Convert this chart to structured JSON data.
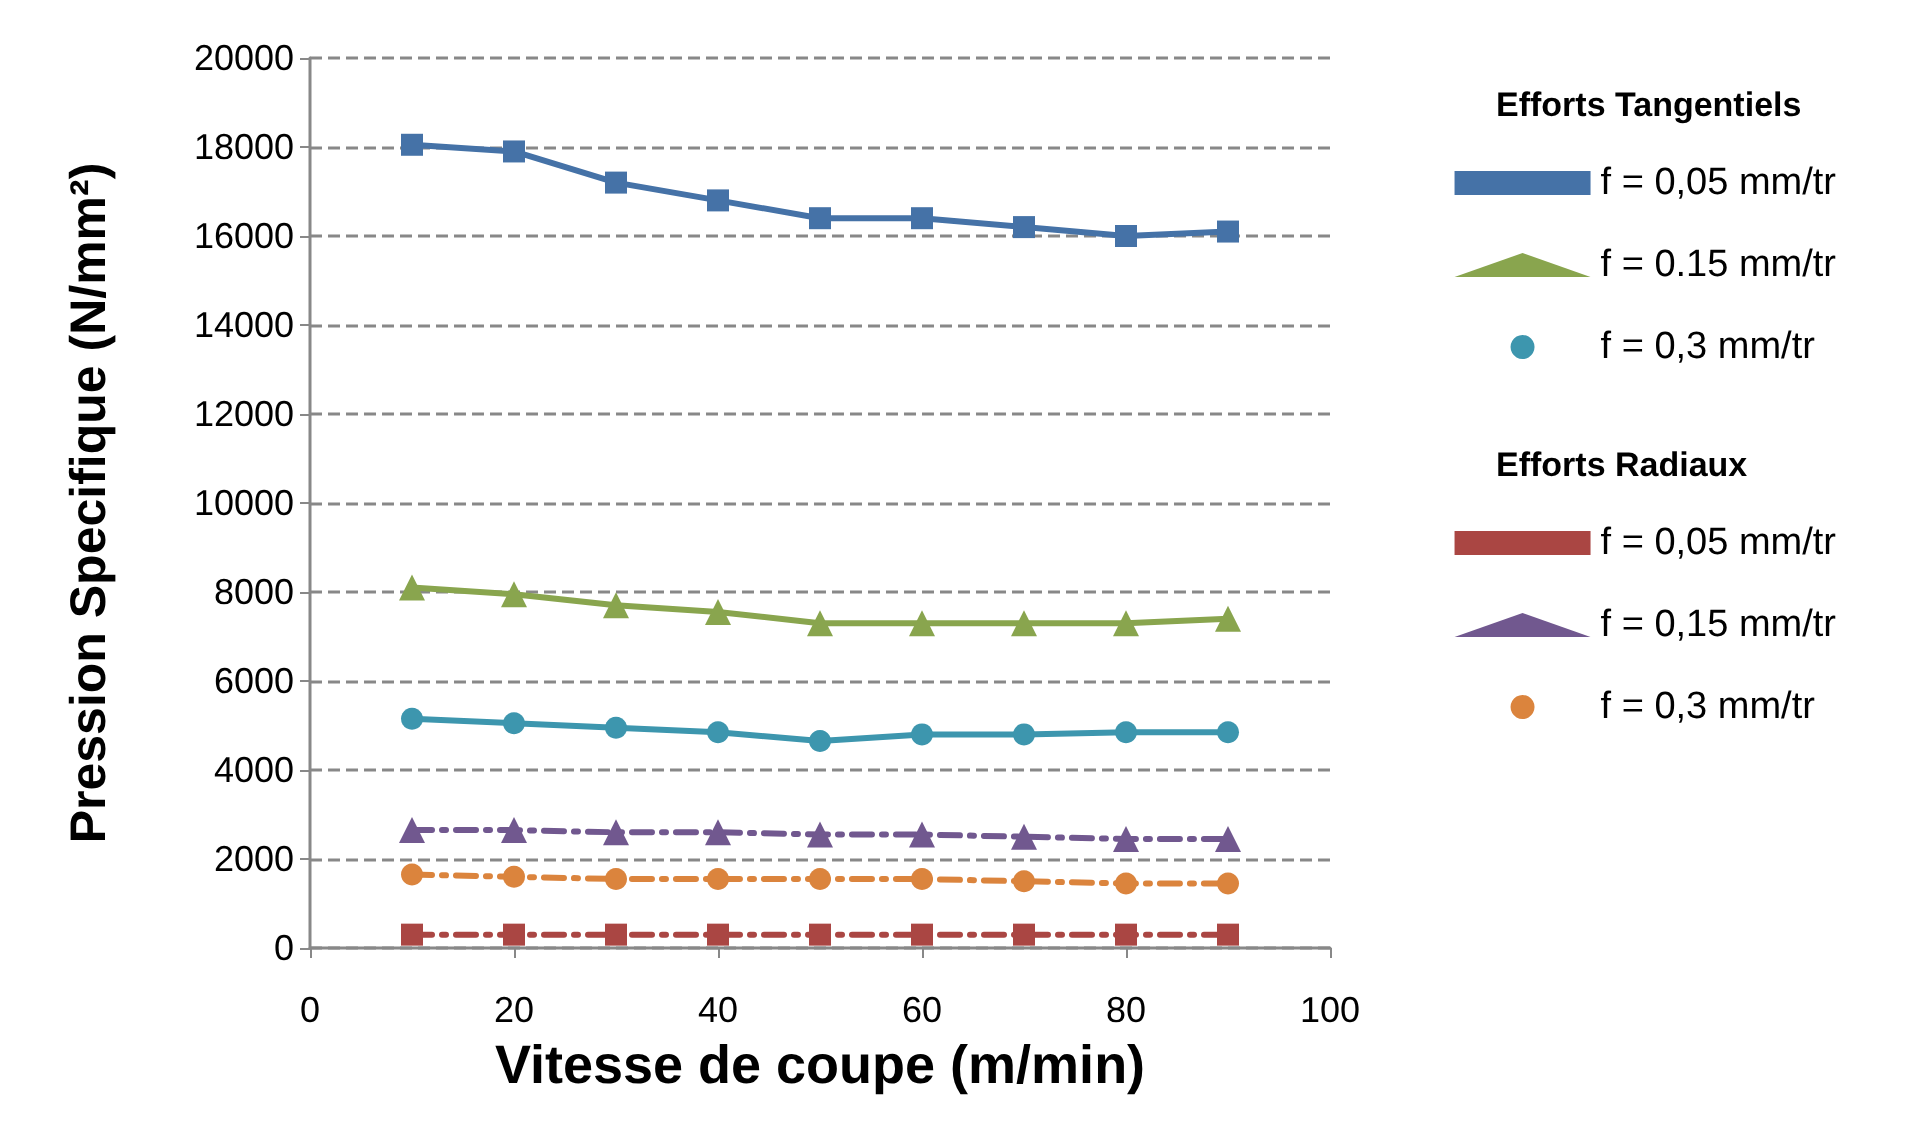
{
  "chart_data": {
    "type": "line",
    "xlabel": "Vitesse de coupe (m/min)",
    "ylabel": "Pression Specifique (N/mm²)",
    "x": [
      10,
      20,
      30,
      40,
      50,
      60,
      70,
      80,
      90
    ],
    "xlim": [
      0,
      100
    ],
    "xticks": [
      0,
      20,
      40,
      60,
      80,
      100
    ],
    "ylim": [
      0,
      20000
    ],
    "yticks": [
      0,
      2000,
      4000,
      6000,
      8000,
      10000,
      12000,
      14000,
      16000,
      18000,
      20000
    ],
    "grid": "y",
    "legend": "right",
    "annotations": [
      "Efforts Tangentiels",
      "Efforts Radiaux"
    ],
    "series": [
      {
        "name": "f = 0,05 mm/tr",
        "color": "#4572a7",
        "marker": "square",
        "line_style": "solid",
        "values": [
          18050,
          17900,
          17200,
          16800,
          16400,
          16400,
          16200,
          16000,
          16100
        ]
      },
      {
        "name": "f = 0.15 mm/tr",
        "color": "#89a54e",
        "marker": "triangle",
        "line_style": "solid",
        "values": [
          8100,
          7950,
          7700,
          7550,
          7300,
          7300,
          7300,
          7300,
          7400
        ]
      },
      {
        "name": "f = 0,3 mm/tr",
        "color": "#3d96ae",
        "marker": "circle",
        "line_style": "solid",
        "values": [
          5150,
          5050,
          4950,
          4850,
          4650,
          4800,
          4800,
          4850,
          4850
        ]
      },
      {
        "name": "f = 0,05 mm/tr",
        "color": "#aa4643",
        "marker": "square",
        "line_style": "dashed",
        "values": [
          300,
          300,
          300,
          300,
          300,
          300,
          300,
          300,
          300
        ]
      },
      {
        "name": "f = 0,15 mm/tr",
        "color": "#71588f",
        "marker": "triangle",
        "line_style": "dashed",
        "values": [
          2650,
          2650,
          2600,
          2600,
          2550,
          2550,
          2500,
          2450,
          2450
        ]
      },
      {
        "name": "f = 0,3 mm/tr",
        "color": "#db843d",
        "marker": "circle",
        "line_style": "dashed",
        "values": [
          1650,
          1600,
          1550,
          1550,
          1550,
          1550,
          1500,
          1450,
          1450
        ]
      }
    ]
  }
}
